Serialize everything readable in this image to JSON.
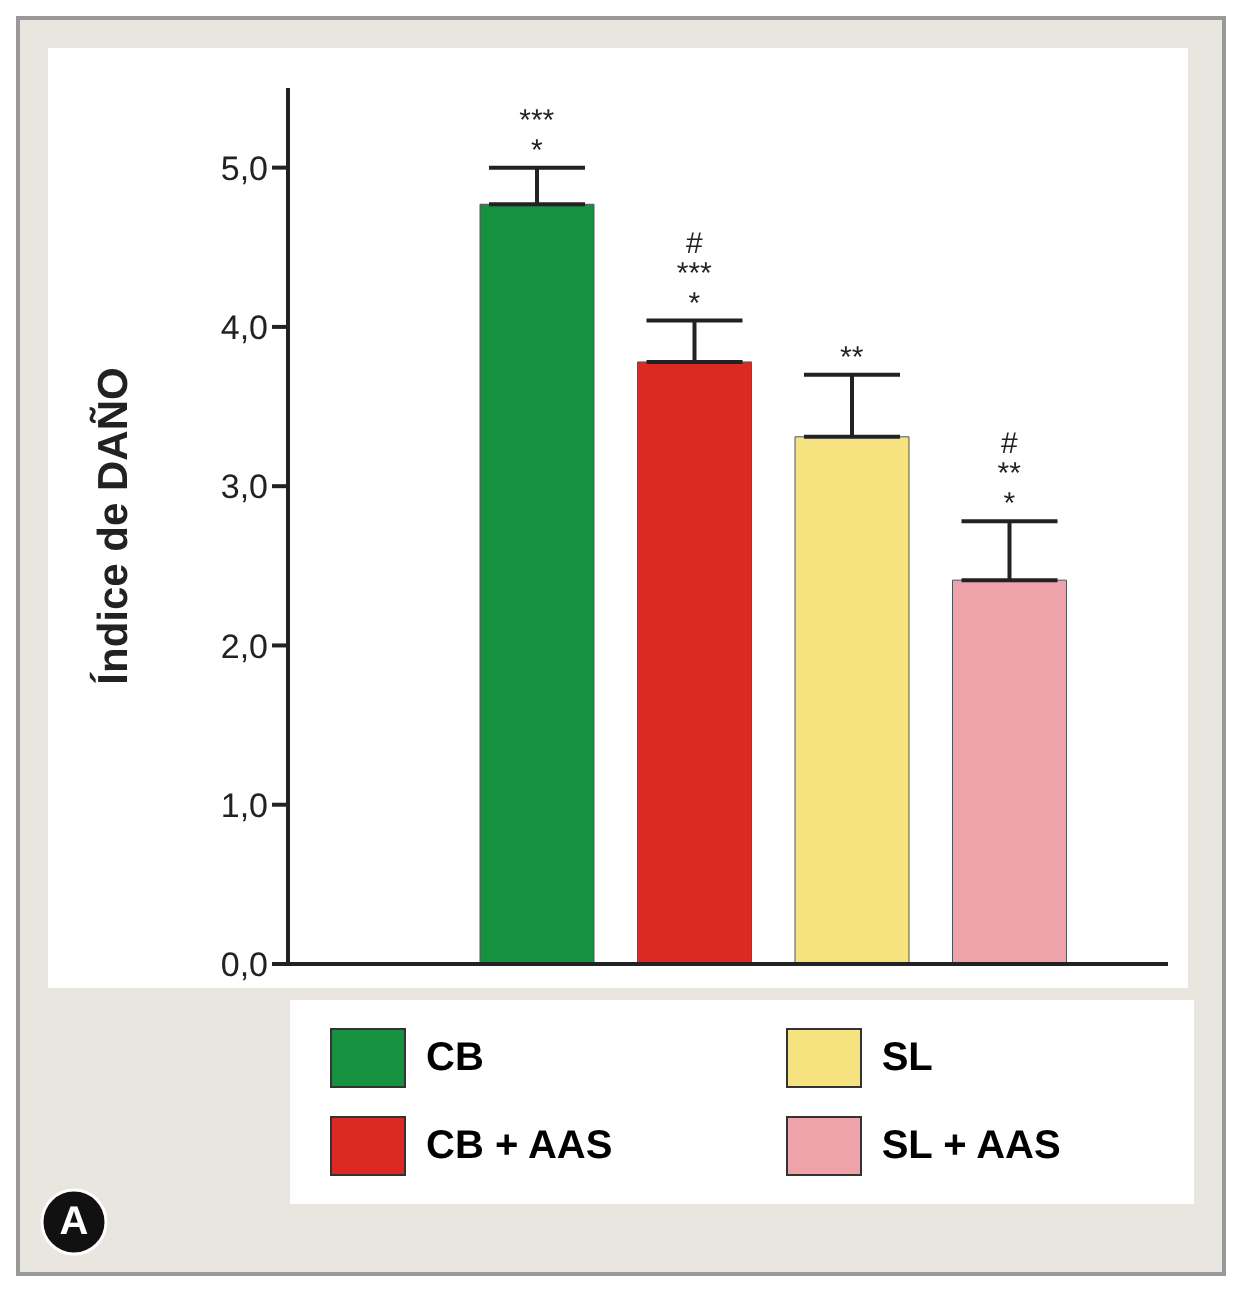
{
  "chart_data": {
    "type": "bar",
    "ylabel": "Índice de DAÑO",
    "categories": [
      null,
      null,
      null,
      null
    ],
    "stacked": true,
    "legend": "bottom",
    "series": [
      {
        "name": "CB",
        "color": "#159140",
        "values": [
          4.77,
          null,
          null,
          null
        ],
        "errors": [
          [
            4.77,
            5.0
          ],
          null,
          null,
          null
        ]
      },
      {
        "name": "CB + AAS",
        "color": "#dc2a22",
        "values": [
          null,
          3.78,
          null,
          null
        ],
        "errors": [
          null,
          [
            3.78,
            4.04
          ],
          null,
          null
        ]
      },
      {
        "name": "SL",
        "color": "#f6e27e",
        "values": [
          null,
          null,
          3.31,
          null
        ],
        "errors": [
          null,
          null,
          [
            3.31,
            3.7
          ],
          null
        ]
      },
      {
        "name": "SL + AAS",
        "color": "#eea3ab",
        "values": [
          null,
          null,
          null,
          2.41
        ],
        "errors": [
          null,
          null,
          null,
          [
            2.41,
            2.78
          ]
        ]
      }
    ],
    "ylim": [
      0,
      5.5
    ],
    "yticks": [
      {
        "value": 0,
        "label": "0,0"
      },
      {
        "value": 1,
        "label": "1,0"
      },
      {
        "value": 2,
        "label": "2,0"
      },
      {
        "value": 3,
        "label": "3,0"
      },
      {
        "value": 4,
        "label": "4,0"
      },
      {
        "value": 5,
        "label": "5,0"
      }
    ],
    "annotations": [
      {
        "text": "***\n*",
        "y": 5.0
      },
      {
        "text": "#\n***\n*",
        "y": 4.04
      },
      {
        "text": "**",
        "y": 3.7
      },
      {
        "text": "#\n**\n*",
        "y": 2.78
      },
      "A"
    ]
  }
}
